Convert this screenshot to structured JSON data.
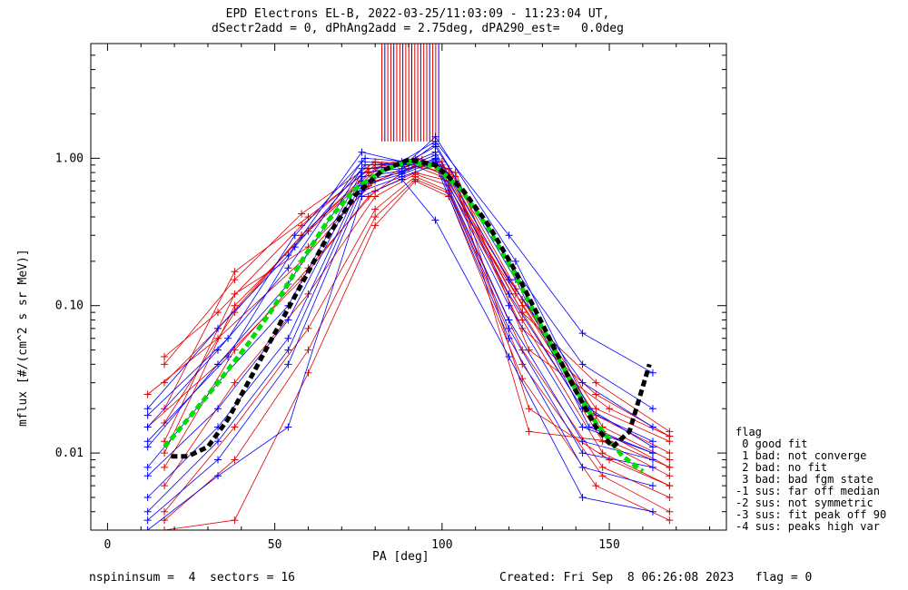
{
  "chart_data": {
    "type": "line",
    "title": "EPD Electrons EL-B, 2022-03-25/11:03:09 - 11:23:04 UT,",
    "subtitle": "dSectr2add = 0, dPhAng2add = 2.75deg, dPA290_est=   0.0deg",
    "xlabel": "PA [deg]",
    "ylabel": "mflux [#/(cm^2 s sr MeV)]",
    "xlim": [
      -5,
      185
    ],
    "ylim": [
      0.003,
      6
    ],
    "yscale": "log",
    "xticks": [
      0,
      50,
      100,
      150
    ],
    "yticks": [
      0.01,
      0.1,
      1.0
    ],
    "ytick_labels": [
      "0.01",
      "0.10",
      "1.00"
    ],
    "series_colors": {
      "red": "#e00000",
      "blue": "#0000ff",
      "green": "#00dd00",
      "black": "#000000"
    },
    "red_curves": [
      {
        "x": [
          17,
          33,
          58,
          78,
          90,
          100,
          122,
          146,
          168
        ],
        "y": [
          0.045,
          0.09,
          0.35,
          0.85,
          0.95,
          0.8,
          0.13,
          0.02,
          0.012
        ]
      },
      {
        "x": [
          17,
          33,
          58,
          78,
          90,
          100,
          122,
          146,
          168
        ],
        "y": [
          0.03,
          0.07,
          0.3,
          0.8,
          0.92,
          0.75,
          0.12,
          0.018,
          0.01
        ]
      },
      {
        "x": [
          17,
          38,
          60,
          80,
          92,
          102,
          124,
          148,
          168
        ],
        "y": [
          0.02,
          0.17,
          0.4,
          0.9,
          1.0,
          0.85,
          0.11,
          0.015,
          0.009
        ]
      },
      {
        "x": [
          17,
          38,
          60,
          80,
          92,
          102,
          124,
          148,
          168
        ],
        "y": [
          0.012,
          0.12,
          0.25,
          0.7,
          0.88,
          0.8,
          0.1,
          0.014,
          0.008
        ]
      },
      {
        "x": [
          17,
          38,
          60,
          80,
          92,
          102,
          124,
          148,
          168
        ],
        "y": [
          0.008,
          0.05,
          0.18,
          0.6,
          0.8,
          0.7,
          0.09,
          0.012,
          0.007
        ]
      },
      {
        "x": [
          17,
          38,
          60,
          80,
          92,
          102,
          124,
          148,
          168
        ],
        "y": [
          0.006,
          0.03,
          0.12,
          0.55,
          0.78,
          0.65,
          0.08,
          0.01,
          0.006
        ]
      },
      {
        "x": [
          17,
          38,
          60,
          80,
          92,
          102,
          124,
          148,
          168
        ],
        "y": [
          0.004,
          0.015,
          0.07,
          0.45,
          0.75,
          0.6,
          0.05,
          0.008,
          0.005
        ]
      },
      {
        "x": [
          17,
          38,
          60,
          80,
          92,
          102,
          124,
          148,
          168
        ],
        "y": [
          0.0035,
          0.009,
          0.05,
          0.4,
          0.72,
          0.58,
          0.04,
          0.007,
          0.004
        ]
      },
      {
        "x": [
          17,
          38,
          60,
          80,
          92,
          102,
          124,
          146,
          168
        ],
        "y": [
          0.003,
          0.0035,
          0.035,
          0.35,
          0.7,
          0.55,
          0.032,
          0.006,
          0.0035
        ]
      },
      {
        "x": [
          12,
          33,
          58,
          78,
          90,
          100,
          124,
          146,
          168
        ],
        "y": [
          0.025,
          0.06,
          0.2,
          0.65,
          0.9,
          0.9,
          0.09,
          0.03,
          0.014
        ]
      },
      {
        "x": [
          12,
          33,
          58,
          78,
          90,
          100,
          124,
          146,
          168
        ],
        "y": [
          0.015,
          0.04,
          0.15,
          0.55,
          0.85,
          0.95,
          0.07,
          0.025,
          0.013
        ]
      },
      {
        "x": [
          17,
          38,
          58,
          80,
          94,
          104,
          126,
          150,
          168
        ],
        "y": [
          0.04,
          0.15,
          0.42,
          0.95,
          0.9,
          0.7,
          0.014,
          0.012,
          0.008
        ]
      },
      {
        "x": [
          17,
          38,
          58,
          80,
          94,
          104,
          126,
          150,
          168
        ],
        "y": [
          0.016,
          0.09,
          0.3,
          0.85,
          0.95,
          0.75,
          0.02,
          0.009,
          0.006
        ]
      },
      {
        "x": [
          17,
          38,
          60,
          82,
          94,
          104,
          126,
          150,
          168
        ],
        "y": [
          0.01,
          0.1,
          0.32,
          0.9,
          0.98,
          0.8,
          0.05,
          0.02,
          0.013
        ]
      }
    ],
    "blue_curves": [
      {
        "x": [
          12,
          33,
          54,
          76,
          88,
          98,
          120,
          142,
          163
        ],
        "y": [
          0.02,
          0.07,
          0.22,
          1.1,
          0.95,
          1.3,
          0.3,
          0.065,
          0.035
        ]
      },
      {
        "x": [
          12,
          33,
          54,
          76,
          88,
          98,
          120,
          142,
          163
        ],
        "y": [
          0.015,
          0.05,
          0.18,
          0.95,
          0.9,
          1.2,
          0.2,
          0.04,
          0.02
        ]
      },
      {
        "x": [
          12,
          33,
          54,
          76,
          88,
          98,
          120,
          142,
          163
        ],
        "y": [
          0.011,
          0.04,
          0.14,
          0.85,
          0.88,
          1.1,
          0.15,
          0.03,
          0.015
        ]
      },
      {
        "x": [
          12,
          33,
          54,
          76,
          88,
          98,
          120,
          142,
          163
        ],
        "y": [
          0.008,
          0.03,
          0.1,
          0.8,
          0.85,
          1.05,
          0.12,
          0.02,
          0.012
        ]
      },
      {
        "x": [
          12,
          33,
          54,
          76,
          88,
          98,
          120,
          142,
          163
        ],
        "y": [
          0.007,
          0.02,
          0.08,
          0.75,
          0.82,
          1.0,
          0.1,
          0.015,
          0.01
        ]
      },
      {
        "x": [
          12,
          33,
          54,
          76,
          88,
          98,
          120,
          142,
          163
        ],
        "y": [
          0.005,
          0.015,
          0.06,
          0.7,
          0.8,
          0.98,
          0.08,
          0.012,
          0.009
        ]
      },
      {
        "x": [
          12,
          33,
          54,
          76,
          88,
          98,
          120,
          142,
          163
        ],
        "y": [
          0.004,
          0.012,
          0.05,
          0.65,
          0.78,
          0.95,
          0.07,
          0.01,
          0.008
        ]
      },
      {
        "x": [
          12,
          33,
          54,
          76,
          88,
          98,
          120,
          142,
          163
        ],
        "y": [
          0.0035,
          0.009,
          0.04,
          0.6,
          0.75,
          0.9,
          0.06,
          0.008,
          0.006
        ]
      },
      {
        "x": [
          12,
          33,
          54,
          76,
          88,
          98,
          120,
          142,
          163
        ],
        "y": [
          0.003,
          0.007,
          0.015,
          0.55,
          0.72,
          0.38,
          0.045,
          0.005,
          0.004
        ]
      },
      {
        "x": [
          12,
          36,
          56,
          77,
          90,
          98,
          122,
          144,
          163
        ],
        "y": [
          0.018,
          0.06,
          0.3,
          1.0,
          0.95,
          1.4,
          0.2,
          0.02,
          0.011
        ]
      },
      {
        "x": [
          12,
          36,
          56,
          77,
          90,
          98,
          122,
          144,
          163
        ],
        "y": [
          0.012,
          0.045,
          0.25,
          0.9,
          0.92,
          1.25,
          0.15,
          0.015,
          0.01
        ]
      }
    ],
    "green_curve": {
      "x": [
        17,
        25,
        33,
        42,
        50,
        58,
        66,
        74,
        82,
        90,
        98,
        106,
        114,
        122,
        130,
        138,
        146,
        154,
        160
      ],
      "y": [
        0.011,
        0.018,
        0.03,
        0.055,
        0.1,
        0.2,
        0.38,
        0.62,
        0.82,
        0.95,
        0.88,
        0.6,
        0.33,
        0.16,
        0.07,
        0.032,
        0.016,
        0.0095,
        0.0075
      ]
    },
    "black_curve": {
      "x": [
        19,
        24,
        30,
        36,
        42,
        50,
        58,
        66,
        74,
        82,
        90,
        98,
        106,
        114,
        122,
        130,
        138,
        146,
        151,
        156,
        162
      ],
      "y": [
        0.0095,
        0.0095,
        0.011,
        0.017,
        0.03,
        0.065,
        0.14,
        0.3,
        0.56,
        0.82,
        0.98,
        0.9,
        0.62,
        0.35,
        0.17,
        0.075,
        0.032,
        0.015,
        0.011,
        0.014,
        0.04
      ]
    },
    "saturated_bars": {
      "x_start": 82,
      "x_end": 99,
      "count": 20
    }
  },
  "ylabel_text": "mflux [#/(cm^2 s sr MeV)]",
  "legend": {
    "title": "flag",
    "items": [
      " 0 good fit",
      " 1 bad: not converge",
      " 2 bad: no fit",
      " 3 bad: bad fgm state",
      "-1 sus: far off median",
      "-2 sus: not symmetric",
      "-3 sus: fit peak off 90",
      "-4 sus: peaks high var"
    ]
  },
  "footer": {
    "left": "nspininsum =  4  sectors = 16",
    "right": "Created: Fri Sep  8 06:26:08 2023   flag = 0"
  }
}
